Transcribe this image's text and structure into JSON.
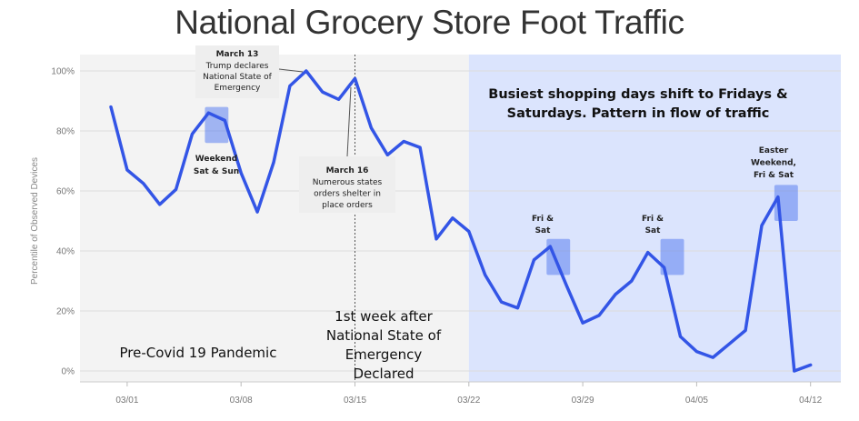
{
  "chart_data": {
    "type": "line",
    "title": "National Grocery Store Foot Traffic",
    "ylabel": "Percentile of Observed Devices",
    "xlabel": "",
    "ylim": [
      0,
      100
    ],
    "y_ticks": [
      "0%",
      "20%",
      "40%",
      "60%",
      "80%",
      "100%"
    ],
    "x_ticks": [
      "03/01",
      "03/08",
      "03/15",
      "03/22",
      "03/29",
      "04/05",
      "04/12"
    ],
    "color": "#3355e6",
    "grid": "horizontal",
    "series": [
      {
        "x": [
          "02/29",
          "03/01",
          "03/02",
          "03/03",
          "03/04",
          "03/05",
          "03/06",
          "03/07",
          "03/08",
          "03/09",
          "03/10",
          "03/11",
          "03/12",
          "03/13",
          "03/14",
          "03/15",
          "03/16",
          "03/17",
          "03/18",
          "03/19",
          "03/20",
          "03/21",
          "03/22",
          "03/23",
          "03/24",
          "03/25",
          "03/26",
          "03/27",
          "03/28",
          "03/29",
          "03/30",
          "03/31",
          "04/01",
          "04/02",
          "04/03",
          "04/04",
          "04/05",
          "04/06",
          "04/07",
          "04/08",
          "04/09",
          "04/10",
          "04/11",
          "04/12"
        ],
        "values": [
          88,
          67,
          62.5,
          55.5,
          60.5,
          79,
          86,
          83.5,
          66,
          53,
          69.5,
          95,
          100,
          93,
          90.5,
          97.5,
          81,
          72,
          76.5,
          74.5,
          44,
          51,
          46.5,
          32,
          23,
          21,
          37,
          41.5,
          28.5,
          16,
          18.5,
          25.5,
          30,
          39.5,
          34.5,
          11.5,
          6.5,
          4.5,
          9,
          13.5,
          48.5,
          58,
          0,
          2
        ]
      }
    ],
    "regions": [
      {
        "label": "Pre-Covid 19 Pandemic",
        "from": "02/26",
        "to": "03/22",
        "color": "#f3f3f3"
      },
      {
        "label": "1st week after National State of Emergency Declared",
        "from": "03/15",
        "to": "03/22"
      },
      {
        "label": "Busiest shopping days shift to Fridays & Saturdays. Pattern in flow of traffic",
        "from": "03/22",
        "to": "04/16",
        "color": "#dbe4fd"
      }
    ],
    "highlights": [
      {
        "label": "Weekend Sat & Sun",
        "from": "03/06",
        "to": "03/07",
        "ymin": 76,
        "ymax": 88
      },
      {
        "label": "Fri & Sat",
        "from": "03/27",
        "to": "03/28",
        "ymin": 32,
        "ymax": 44
      },
      {
        "label": "Fri & Sat",
        "from": "04/03",
        "to": "04/04",
        "ymin": 32,
        "ymax": 44
      },
      {
        "label": "Easter Weekend, Fri & Sat",
        "from": "04/10",
        "to": "04/11",
        "ymin": 50,
        "ymax": 62
      }
    ],
    "annotations": [
      {
        "title": "March 13",
        "text": "Trump declares National State of Emergency"
      },
      {
        "title": "March 16",
        "text": "Numerous states orders shelter in place orders"
      }
    ]
  },
  "labels": {
    "pre_covid": "Pre-Covid 19 Pandemic",
    "first_week_lines": [
      "1st week after",
      "National State of",
      "Emergency",
      "Declared"
    ],
    "busiest_lines": [
      "Busiest shopping days shift to Fridays &",
      "Saturdays. Pattern in flow of traffic"
    ],
    "weekend_lines": [
      "Weekend",
      "Sat & Sun"
    ],
    "fri_sat_lines": [
      "Fri &",
      "Sat"
    ],
    "easter_lines": [
      "Easter",
      "Weekend,",
      "Fri & Sat"
    ],
    "march13_title": "March 13",
    "march13_lines": [
      "Trump declares",
      "National State of",
      "Emergency"
    ],
    "march16_title": "March 16",
    "march16_lines": [
      "Numerous states",
      "orders shelter in",
      "place orders"
    ]
  }
}
